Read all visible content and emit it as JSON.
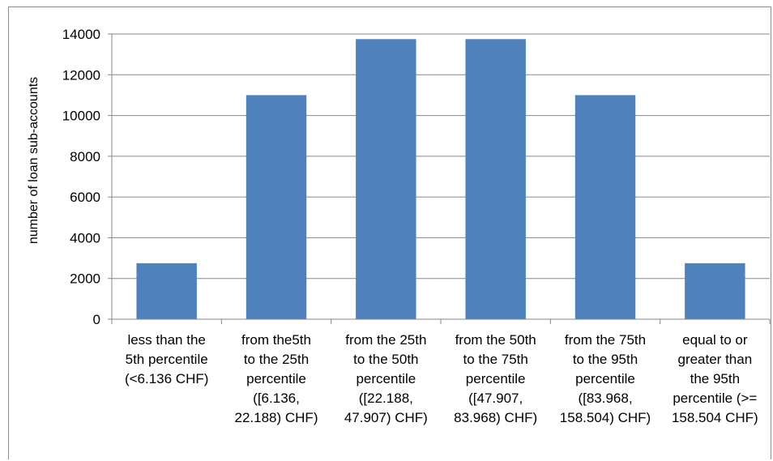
{
  "chart_data": {
    "type": "bar",
    "title": "",
    "xlabel": "",
    "ylabel": "number of loan sub-accounts",
    "ylim": [
      0,
      14000
    ],
    "yticks": [
      0,
      2000,
      4000,
      6000,
      8000,
      10000,
      12000,
      14000
    ],
    "grid": true,
    "legend": "none",
    "bar_color": "#4f81bd",
    "grid_color": "#878787",
    "categories": [
      [
        "less than the",
        "5th percentile",
        "(<6.136 CHF)"
      ],
      [
        "from the5th",
        "to the 25th",
        "percentile",
        "([6.136,",
        "22.188) CHF)"
      ],
      [
        "from the 25th",
        "to the 50th",
        "percentile",
        "([22.188,",
        "47.907) CHF)"
      ],
      [
        "from the 50th",
        "to the 75th",
        "percentile",
        "([47.907,",
        "83.968) CHF)"
      ],
      [
        "from the 75th",
        "to the 95th",
        "percentile",
        "([83.968,",
        "158.504) CHF)"
      ],
      [
        "equal to or",
        "greater than",
        "the 95th",
        "percentile (>=",
        "158.504 CHF)"
      ]
    ],
    "values": [
      2750,
      11000,
      13750,
      13750,
      11000,
      2750
    ]
  }
}
